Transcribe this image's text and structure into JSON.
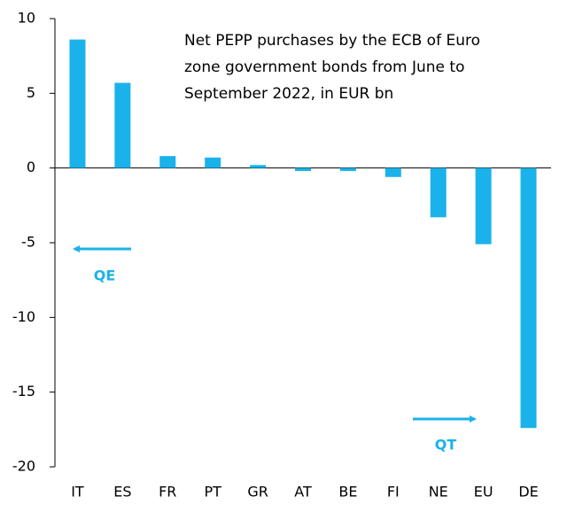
{
  "chart_data": {
    "type": "bar",
    "title": [
      "Net PEPP purchases by the ECB of Euro",
      "zone government bonds from June to",
      "September 2022, in EUR bn"
    ],
    "categories": [
      "IT",
      "ES",
      "FR",
      "PT",
      "GR",
      "AT",
      "BE",
      "FI",
      "NE",
      "EU",
      "DE"
    ],
    "values": [
      8.6,
      5.7,
      0.8,
      0.7,
      0.2,
      -0.2,
      -0.2,
      -0.6,
      -3.3,
      -5.1,
      -17.4
    ],
    "color": "#1ab2ea",
    "ylim": [
      -20,
      10
    ],
    "yticks": [
      -20,
      -15,
      -10,
      -5,
      0,
      5,
      10
    ],
    "annotations": [
      "QE",
      "QT"
    ]
  }
}
